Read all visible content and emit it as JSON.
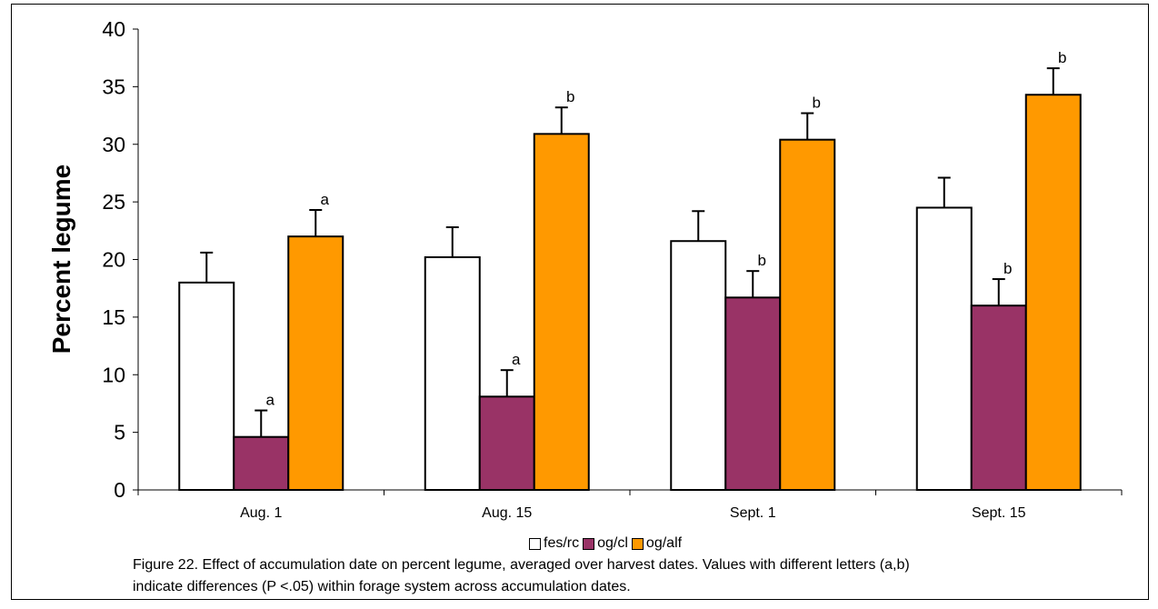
{
  "chart_data": {
    "type": "bar",
    "ylabel": "Percent legume",
    "xlabel": "",
    "ylim": [
      0,
      40
    ],
    "yticks": [
      "0",
      "5",
      "10",
      "15",
      "20",
      "25",
      "30",
      "35",
      "40"
    ],
    "categories": [
      "Aug. 1",
      "Aug. 15",
      "Sept. 1",
      "Sept. 15"
    ],
    "series": [
      {
        "name": "fes/rc",
        "color": "#FFFFFF",
        "values": [
          18.0,
          20.2,
          21.6,
          24.5
        ],
        "errors": [
          2.6,
          2.6,
          2.6,
          2.6
        ],
        "labels": [
          "",
          "",
          "",
          ""
        ]
      },
      {
        "name": "og/cl",
        "color": "#993366",
        "values": [
          4.6,
          8.1,
          16.7,
          16.0
        ],
        "errors": [
          2.3,
          2.3,
          2.3,
          2.3
        ],
        "labels": [
          "a",
          "a",
          "b",
          "b"
        ]
      },
      {
        "name": "og/alf",
        "color": "#FF9900",
        "values": [
          22.0,
          30.9,
          30.4,
          34.3
        ],
        "errors": [
          2.3,
          2.3,
          2.3,
          2.3
        ],
        "labels": [
          "a",
          "b",
          "b",
          "b"
        ]
      }
    ],
    "legend": "bottom-center",
    "grid": false
  },
  "caption": "Figure 22.  Effect of accumulation date on percent legume, averaged over harvest dates.  Values with different letters (a,b) indicate differences (P <.05) within forage system across accumulation dates."
}
